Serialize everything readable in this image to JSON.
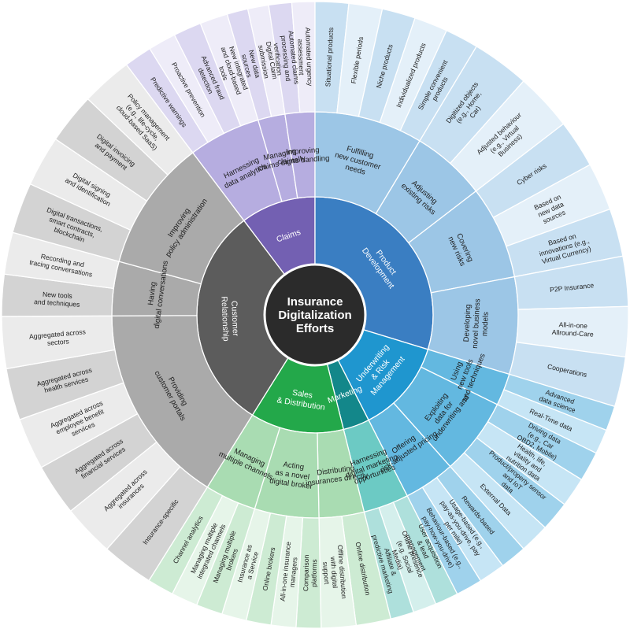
{
  "center": {
    "title": [
      "Insurance",
      "Digitalization",
      "Efforts"
    ]
  },
  "colors": {
    "center": "#2b2b2b",
    "divider": "#ffffff"
  },
  "areas": [
    {
      "label": [
        "Claims"
      ],
      "inner": "#7360b2",
      "mid": "#b6ade0",
      "outer": [
        "#dcd8f1",
        "#eeecf8"
      ],
      "groups": [
        {
          "label": [
            "Harnessing",
            "data analytics"
          ],
          "outer": [
            [
              "Predictive warnings"
            ],
            [
              "Proactive prevention"
            ],
            [
              "Advanced fraud",
              "detection"
            ],
            [
              "New integrated",
              "and cloud-based",
              "tools"
            ]
          ]
        },
        {
          "label": [
            "Managing",
            "claims digitally"
          ],
          "outer": [
            [
              "New data",
              "sources"
            ],
            [
              "Digital Claim",
              "submission"
            ]
          ]
        },
        {
          "label": [
            "Improving",
            "claims handling"
          ],
          "outer": [
            [
              "Automated claims",
              "processing and",
              "verification"
            ],
            [
              "Automated urgency",
              "assessment"
            ]
          ]
        }
      ]
    },
    {
      "label": [
        "Product",
        "Development"
      ],
      "inner": "#3a7ec2",
      "mid": "#9cc6e6",
      "outer": [
        "#c8e0f2",
        "#e4f0f9"
      ],
      "groups": [
        {
          "label": [
            "Fulfilling",
            "new customer",
            "needs"
          ],
          "outer": [
            [
              "Situational products"
            ],
            [
              "Flexible periods"
            ],
            [
              "Niche products"
            ],
            [
              "Individualized products"
            ],
            [
              "Simple convenient",
              "products"
            ]
          ]
        },
        {
          "label": [
            "Adjusting",
            "existing risks"
          ],
          "outer": [
            [
              "Digitized objects",
              "(e.g., Home,",
              "Car)"
            ],
            [
              "Adjusted behaviour",
              "(e.g., Virtual",
              "Business)"
            ]
          ]
        },
        {
          "label": [
            "Covering",
            "new risks"
          ],
          "outer": [
            [
              "Cyber risks"
            ],
            [
              "Based on",
              "new data",
              "sources"
            ],
            [
              "Based on",
              "innovations (e.g.,",
              "Virtual Currency)"
            ]
          ]
        },
        {
          "label": [
            "Developing",
            "novel business",
            "models"
          ],
          "outer": [
            [
              "P2P Insurance"
            ],
            [
              "All-in-one",
              "Allround-Care"
            ],
            [
              "Cooperations"
            ]
          ]
        }
      ]
    },
    {
      "label": [
        "Underwriting",
        "& Risk",
        "Management"
      ],
      "inner": "#1f96cf",
      "mid": "#63b8e0",
      "outer": [
        "#9fd2ec",
        "#c6e5f5"
      ],
      "groups": [
        {
          "label": [
            "Using",
            "new tools",
            "and techniques"
          ],
          "outer": [
            [
              "Advanced",
              "data science"
            ],
            [
              "Real-Time data"
            ]
          ]
        },
        {
          "label": [
            "Exploiting",
            "data for",
            "underwriting and"
          ],
          "outer": [
            [
              "Driving data",
              "(e.g., Car",
              "OBD2, Mobile)"
            ],
            [
              "Health, life,",
              "vitality and",
              "nutrition data"
            ],
            [
              "Product/property sensor",
              "and IoT",
              "data"
            ],
            [
              "External Data"
            ]
          ]
        },
        {
          "label": [
            "Offering",
            "risk-adjusted pricing"
          ],
          "outer": [
            [
              "Rewards-based"
            ],
            [
              "Usage-based (e.g.,",
              "pay-as-you-drive, pay",
              "per mile)"
            ],
            [
              "Behaviour-based (e.g.,",
              "pay-how-you-drive)"
            ]
          ]
        }
      ]
    },
    {
      "label": [
        "Marketing"
      ],
      "inner": "#13878a",
      "mid": "#6ccac4",
      "outer": [
        "#aee0dc",
        "#d4efec"
      ],
      "groups": [
        {
          "label": [
            "Harnessing",
            "digital marketing",
            "opportunities"
          ],
          "outer": [
            [
              "User acquisition",
              "& lead",
              "management"
            ],
            [
              "Online presence",
              "(e.g. Social",
              "Media)"
            ],
            [
              "Affiliate &",
              "predictive marketing"
            ]
          ]
        }
      ]
    },
    {
      "label": [
        "Sales",
        "& Distribution"
      ],
      "inner": "#23a84a",
      "mid": "#a9dcb2",
      "outer": [
        "#cdebd3",
        "#e6f5e9"
      ],
      "groups": [
        {
          "label": [
            "Distributing",
            "insurances directly"
          ],
          "outer": [
            [
              "Online distribution"
            ],
            [
              "Offline distribution",
              "with digital",
              "support"
            ]
          ]
        },
        {
          "label": [
            "Acting",
            "as a novel",
            "digital broker"
          ],
          "outer": [
            [
              "Comparison",
              "platforms"
            ],
            [
              "All-in-one insurance",
              "managers"
            ],
            [
              "Online brokers"
            ],
            [
              "Insurance as",
              "a Service"
            ]
          ]
        },
        {
          "label": [
            "Managing",
            "multiple channels"
          ],
          "outer": [
            [
              "Managing multiple",
              "brokers"
            ],
            [
              "Managing multiple",
              "integrated channels"
            ],
            [
              "Channel analytics"
            ]
          ]
        }
      ]
    },
    {
      "label": [
        "Customer",
        "Relationship"
      ],
      "inner": "#5c5c5c",
      "mid": "#aaaaaa",
      "outer": [
        "#d3d3d3",
        "#ebebeb"
      ],
      "groups": [
        {
          "label": [
            "Providing",
            "customer portals"
          ],
          "outer": [
            [
              "Insurance-specific"
            ],
            [
              "Aggregated across",
              "insurances"
            ],
            [
              "Aggregated across",
              "financial services"
            ],
            [
              "Aggregated across",
              "employee benefit",
              "services"
            ],
            [
              "Aggregated across",
              "health services"
            ],
            [
              "Aggregated across",
              "sectors"
            ]
          ]
        },
        {
          "label": [
            "Having",
            "digital conversations"
          ],
          "outer": [
            [
              "New tools",
              "and techniques"
            ],
            [
              "Recording and",
              "tracing conversations"
            ]
          ]
        },
        {
          "label": [
            "Improving",
            "policy administration"
          ],
          "outer": [
            [
              "Digital transactions,",
              "smart contracts,",
              "blockchain"
            ],
            [
              "Digital signing",
              "and identification"
            ],
            [
              "Digital invoicing",
              "and payment"
            ],
            [
              "Policy management",
              "(e.g., life-cycle,",
              "cloud-based SaaS)"
            ]
          ]
        }
      ]
    }
  ]
}
